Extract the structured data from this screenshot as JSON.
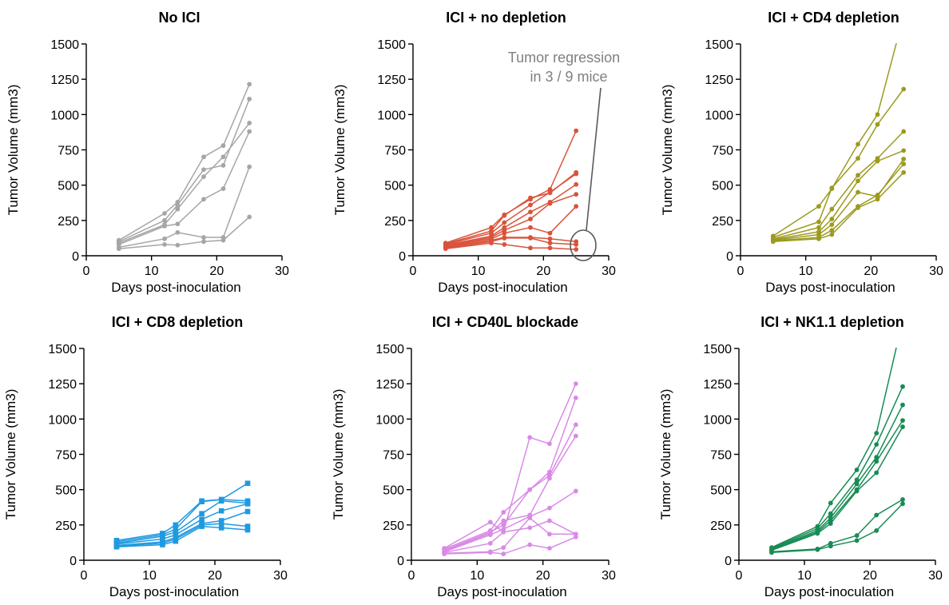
{
  "chart_data": [
    {
      "type": "line",
      "title": "No ICI",
      "xlabel": "Days post-inoculation",
      "ylabel": "Tumor Volume (mm3)",
      "xlim": [
        0,
        30
      ],
      "ylim": [
        0,
        1500
      ],
      "xticks": [
        "0",
        "10",
        "20",
        "30"
      ],
      "yticks": [
        "0",
        "250",
        "500",
        "750",
        "1000",
        "1250",
        "1500"
      ],
      "color": "#a6a6a6",
      "marker": "circle",
      "x": [
        5,
        12,
        14,
        18,
        21,
        25
      ],
      "series": [
        {
          "values": [
            110,
            300,
            380,
            700,
            780,
            1215
          ]
        },
        {
          "values": [
            100,
            250,
            360,
            610,
            640,
            1110
          ]
        },
        {
          "values": [
            90,
            220,
            330,
            560,
            700,
            940
          ]
        },
        {
          "values": [
            80,
            210,
            225,
            400,
            475,
            880
          ]
        },
        {
          "values": [
            60,
            120,
            165,
            130,
            130,
            630
          ]
        },
        {
          "values": [
            50,
            80,
            75,
            100,
            110,
            275
          ]
        }
      ]
    },
    {
      "type": "line",
      "title": "ICI + no depletion",
      "xlabel": "Days post-inoculation",
      "ylabel": "Tumor Volume (mm3)",
      "xlim": [
        0,
        30
      ],
      "ylim": [
        0,
        1500
      ],
      "xticks": [
        "0",
        "10",
        "20",
        "30"
      ],
      "yticks": [
        "0",
        "250",
        "500",
        "750",
        "1000",
        "1250",
        "1500"
      ],
      "color": "#d9533b",
      "marker": "circle",
      "x": [
        5,
        12,
        14,
        18,
        21,
        25
      ],
      "series": [
        {
          "values": [
            90,
            200,
            290,
            400,
            470,
            885
          ]
        },
        {
          "values": [
            85,
            175,
            285,
            410,
            445,
            590
          ]
        },
        {
          "values": [
            80,
            160,
            235,
            360,
            450,
            580
          ]
        },
        {
          "values": [
            75,
            140,
            200,
            310,
            380,
            505
          ]
        },
        {
          "values": [
            70,
            130,
            180,
            260,
            370,
            435
          ]
        },
        {
          "values": [
            65,
            120,
            160,
            200,
            160,
            350
          ]
        },
        {
          "values": [
            60,
            110,
            130,
            130,
            120,
            100
          ]
        },
        {
          "values": [
            55,
            100,
            125,
            125,
            90,
            80
          ]
        },
        {
          "values": [
            50,
            90,
            80,
            55,
            55,
            45
          ]
        }
      ],
      "annotation": {
        "line1": "Tumor regression",
        "line2": "in 3 / 9 mice"
      }
    },
    {
      "type": "line",
      "title": "ICI + CD4 depletion",
      "xlabel": "Days post-inoculation",
      "ylabel": "Tumor Volume (mm3)",
      "xlim": [
        0,
        30
      ],
      "ylim": [
        0,
        1500
      ],
      "xticks": [
        "0",
        "10",
        "20",
        "30"
      ],
      "yticks": [
        "0",
        "250",
        "500",
        "750",
        "1000",
        "1250",
        "1500"
      ],
      "color": "#9c9a1f",
      "marker": "circle",
      "x": [
        5,
        12,
        14,
        18,
        21,
        25
      ],
      "series": [
        {
          "values": [
            140,
            350,
            475,
            790,
            1000,
            1700
          ]
        },
        {
          "values": [
            130,
            240,
            480,
            690,
            930,
            1180
          ]
        },
        {
          "values": [
            120,
            200,
            330,
            570,
            690,
            880
          ]
        },
        {
          "values": [
            115,
            170,
            260,
            530,
            670,
            745
          ]
        },
        {
          "values": [
            110,
            150,
            220,
            450,
            420,
            685
          ]
        },
        {
          "values": [
            105,
            130,
            180,
            350,
            430,
            650
          ]
        },
        {
          "values": [
            100,
            120,
            150,
            340,
            400,
            590
          ]
        }
      ]
    },
    {
      "type": "line",
      "title": "ICI + CD8 depletion",
      "xlabel": "Days post-inoculation",
      "ylabel": "Tumor Volume (mm3)",
      "xlim": [
        0,
        30
      ],
      "ylim": [
        0,
        1500
      ],
      "xticks": [
        "0",
        "10",
        "20",
        "30"
      ],
      "yticks": [
        "0",
        "250",
        "500",
        "750",
        "1000",
        "1250",
        "1500"
      ],
      "color": "#1f9ae0",
      "marker": "square",
      "x": [
        5,
        12,
        14,
        18,
        21,
        25
      ],
      "series": [
        {
          "values": [
            140,
            190,
            250,
            420,
            430,
            545
          ]
        },
        {
          "values": [
            130,
            180,
            220,
            415,
            430,
            420
          ]
        },
        {
          "values": [
            120,
            170,
            200,
            330,
            420,
            405
          ]
        },
        {
          "values": [
            115,
            150,
            180,
            290,
            350,
            400
          ]
        },
        {
          "values": [
            105,
            130,
            160,
            260,
            280,
            345
          ]
        },
        {
          "values": [
            100,
            120,
            150,
            250,
            260,
            240
          ]
        },
        {
          "values": [
            95,
            110,
            135,
            240,
            230,
            215
          ]
        }
      ]
    },
    {
      "type": "line",
      "title": "ICI + CD40L blockade",
      "xlabel": "Days post-inoculation",
      "ylabel": "Tumor Volume (mm3)",
      "xlim": [
        0,
        30
      ],
      "ylim": [
        0,
        1500
      ],
      "xticks": [
        "0",
        "10",
        "20",
        "30"
      ],
      "yticks": [
        "0",
        "250",
        "500",
        "750",
        "1000",
        "1250",
        "1500"
      ],
      "color": "#d98ae6",
      "marker": "circle",
      "x": [
        5,
        12,
        14,
        18,
        21,
        25
      ],
      "series": [
        {
          "values": [
            85,
            270,
            200,
            870,
            825,
            1250
          ]
        },
        {
          "values": [
            80,
            210,
            340,
            500,
            625,
            1150
          ]
        },
        {
          "values": [
            70,
            200,
            250,
            500,
            600,
            960
          ]
        },
        {
          "values": [
            65,
            190,
            280,
            320,
            580,
            880
          ]
        },
        {
          "values": [
            60,
            180,
            220,
            310,
            370,
            490
          ]
        },
        {
          "values": [
            55,
            120,
            200,
            230,
            280,
            185
          ]
        },
        {
          "values": [
            50,
            60,
            90,
            300,
            185,
            185
          ]
        },
        {
          "values": [
            45,
            55,
            45,
            110,
            85,
            165
          ]
        }
      ]
    },
    {
      "type": "line",
      "title": "ICI + NK1.1 depletion",
      "xlabel": "Days post-inoculation",
      "ylabel": "Tumor Volume (mm3)",
      "xlim": [
        0,
        30
      ],
      "ylim": [
        0,
        1500
      ],
      "xticks": [
        "0",
        "10",
        "20",
        "30"
      ],
      "yticks": [
        "0",
        "250",
        "500",
        "750",
        "1000",
        "1250",
        "1500"
      ],
      "color": "#178c55",
      "marker": "circle",
      "x": [
        5,
        12,
        14,
        18,
        21,
        25
      ],
      "series": [
        {
          "values": [
            90,
            240,
            405,
            640,
            900,
            1700
          ]
        },
        {
          "values": [
            85,
            225,
            330,
            570,
            820,
            1230
          ]
        },
        {
          "values": [
            80,
            210,
            300,
            540,
            730,
            1100
          ]
        },
        {
          "values": [
            75,
            200,
            280,
            500,
            700,
            990
          ]
        },
        {
          "values": [
            70,
            190,
            260,
            490,
            620,
            945
          ]
        },
        {
          "values": [
            60,
            80,
            120,
            175,
            320,
            430
          ]
        },
        {
          "values": [
            55,
            75,
            100,
            140,
            210,
            400
          ]
        }
      ]
    }
  ]
}
